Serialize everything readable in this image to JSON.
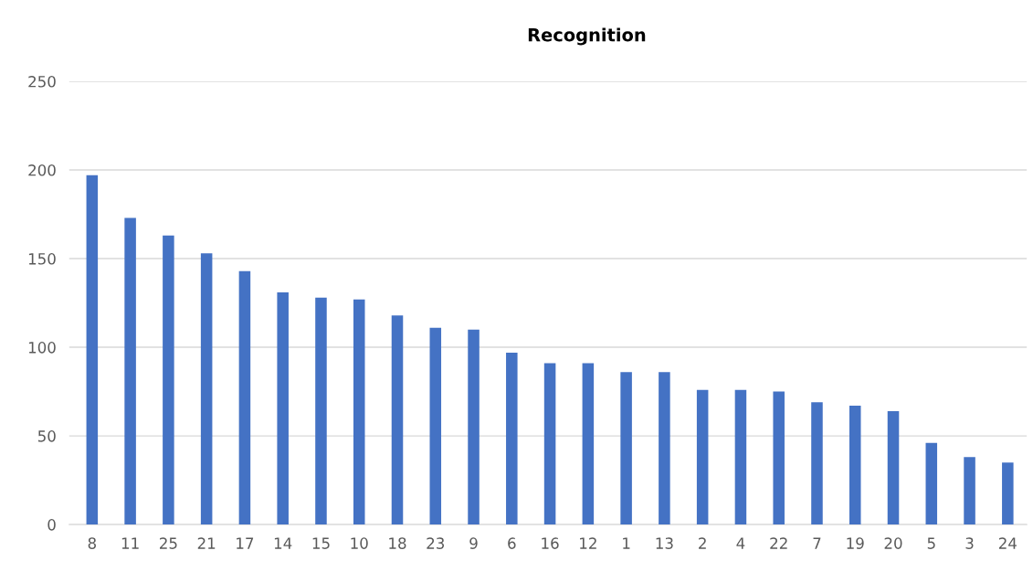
{
  "chart_data": {
    "type": "bar",
    "title": "Recognition",
    "categories": [
      "8",
      "11",
      "25",
      "21",
      "17",
      "14",
      "15",
      "10",
      "18",
      "23",
      "9",
      "6",
      "16",
      "12",
      "1",
      "13",
      "2",
      "4",
      "22",
      "7",
      "19",
      "20",
      "5",
      "3",
      "24"
    ],
    "values": [
      197,
      173,
      163,
      153,
      143,
      131,
      128,
      127,
      118,
      111,
      110,
      97,
      91,
      91,
      86,
      86,
      76,
      76,
      75,
      69,
      67,
      64,
      46,
      38,
      35
    ],
    "color": "#4472c4",
    "ylim": [
      0,
      250
    ],
    "yticks": [
      0,
      50,
      100,
      150,
      200,
      250
    ],
    "grid": "y",
    "legend": false
  }
}
